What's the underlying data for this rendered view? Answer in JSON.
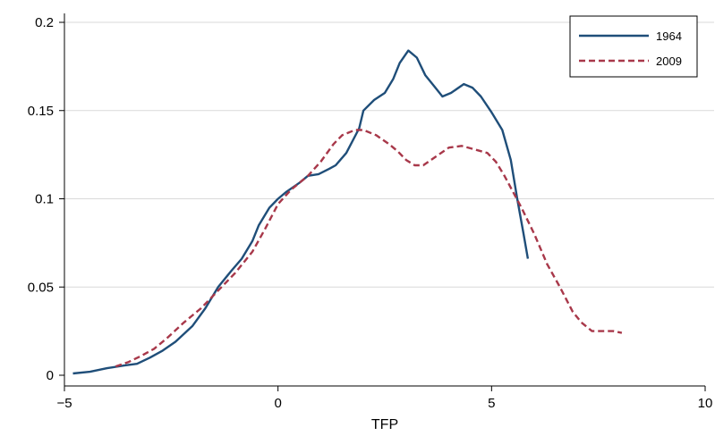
{
  "chart_data": {
    "type": "line",
    "xlabel": "TFP",
    "ylabel": "",
    "title": "",
    "xlim": [
      -5,
      10
    ],
    "ylim": [
      0,
      0.2
    ],
    "x_ticks": [
      -5,
      0,
      5,
      10
    ],
    "x_tick_labels": [
      "−5",
      "0",
      "5",
      "10"
    ],
    "y_ticks": [
      0,
      0.05,
      0.1,
      0.15,
      0.2
    ],
    "y_tick_labels": [
      "0",
      "0.05",
      "0.1",
      "0.15",
      "0.2"
    ],
    "grid": "horizontal",
    "legend_position": "top-right",
    "series": [
      {
        "name": "1964",
        "color": "#1f4e79",
        "style": "solid",
        "points": [
          [
            -4.8,
            0.001
          ],
          [
            -4.4,
            0.002
          ],
          [
            -4.0,
            0.004
          ],
          [
            -3.6,
            0.0055
          ],
          [
            -3.3,
            0.0065
          ],
          [
            -3.0,
            0.01
          ],
          [
            -2.7,
            0.014
          ],
          [
            -2.4,
            0.019
          ],
          [
            -2.0,
            0.028
          ],
          [
            -1.7,
            0.038
          ],
          [
            -1.4,
            0.05
          ],
          [
            -1.1,
            0.059
          ],
          [
            -0.85,
            0.066
          ],
          [
            -0.6,
            0.076
          ],
          [
            -0.45,
            0.085
          ],
          [
            -0.2,
            0.095
          ],
          [
            0.0,
            0.1
          ],
          [
            0.2,
            0.104
          ],
          [
            0.5,
            0.109
          ],
          [
            0.7,
            0.113
          ],
          [
            0.95,
            0.114
          ],
          [
            1.2,
            0.117
          ],
          [
            1.35,
            0.119
          ],
          [
            1.6,
            0.126
          ],
          [
            1.9,
            0.14
          ],
          [
            2.0,
            0.15
          ],
          [
            2.25,
            0.156
          ],
          [
            2.5,
            0.16
          ],
          [
            2.7,
            0.168
          ],
          [
            2.85,
            0.177
          ],
          [
            3.05,
            0.184
          ],
          [
            3.25,
            0.18
          ],
          [
            3.45,
            0.17
          ],
          [
            3.65,
            0.164
          ],
          [
            3.85,
            0.158
          ],
          [
            4.05,
            0.16
          ],
          [
            4.35,
            0.165
          ],
          [
            4.55,
            0.163
          ],
          [
            4.75,
            0.158
          ],
          [
            5.0,
            0.149
          ],
          [
            5.25,
            0.139
          ],
          [
            5.45,
            0.122
          ],
          [
            5.6,
            0.1
          ],
          [
            5.75,
            0.08
          ],
          [
            5.85,
            0.066
          ]
        ]
      },
      {
        "name": "2009",
        "color": "#a8384a",
        "style": "dashed",
        "points": [
          [
            -3.8,
            0.005
          ],
          [
            -3.5,
            0.0075
          ],
          [
            -3.2,
            0.011
          ],
          [
            -2.9,
            0.015
          ],
          [
            -2.6,
            0.021
          ],
          [
            -2.2,
            0.03
          ],
          [
            -1.8,
            0.038
          ],
          [
            -1.4,
            0.048
          ],
          [
            -1.0,
            0.058
          ],
          [
            -0.6,
            0.07
          ],
          [
            -0.3,
            0.083
          ],
          [
            0.0,
            0.097
          ],
          [
            0.3,
            0.105
          ],
          [
            0.7,
            0.113
          ],
          [
            1.0,
            0.121
          ],
          [
            1.3,
            0.131
          ],
          [
            1.5,
            0.136
          ],
          [
            1.8,
            0.139
          ],
          [
            2.0,
            0.139
          ],
          [
            2.3,
            0.136
          ],
          [
            2.6,
            0.131
          ],
          [
            2.8,
            0.127
          ],
          [
            3.0,
            0.122
          ],
          [
            3.2,
            0.119
          ],
          [
            3.4,
            0.119
          ],
          [
            3.7,
            0.124
          ],
          [
            4.0,
            0.129
          ],
          [
            4.3,
            0.13
          ],
          [
            4.6,
            0.128
          ],
          [
            4.9,
            0.126
          ],
          [
            5.1,
            0.121
          ],
          [
            5.3,
            0.113
          ],
          [
            5.5,
            0.104
          ],
          [
            5.7,
            0.095
          ],
          [
            6.0,
            0.08
          ],
          [
            6.3,
            0.063
          ],
          [
            6.6,
            0.05
          ],
          [
            6.9,
            0.036
          ],
          [
            7.1,
            0.03
          ],
          [
            7.35,
            0.025
          ],
          [
            7.6,
            0.025
          ],
          [
            7.85,
            0.025
          ],
          [
            8.05,
            0.024
          ]
        ]
      }
    ]
  }
}
